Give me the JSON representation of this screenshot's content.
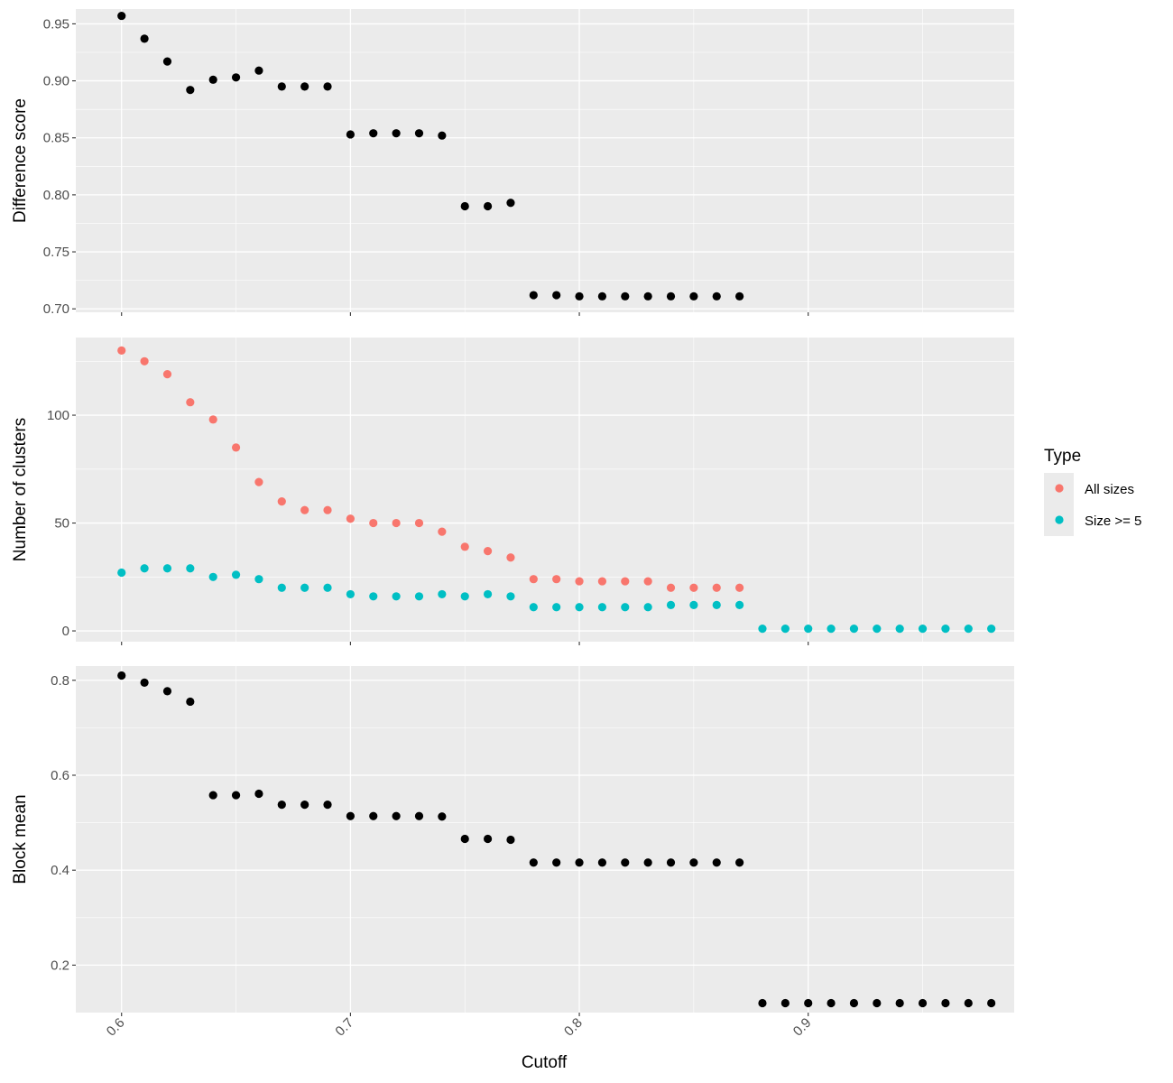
{
  "chart_data": {
    "type": "scatter",
    "xlabel": "Cutoff",
    "xlim": [
      0.58,
      0.99
    ],
    "xticks": [
      0.6,
      0.7,
      0.8,
      0.9
    ],
    "xtick_labels": [
      "0.6",
      "0.7",
      "0.8",
      "0.9"
    ],
    "grid": true,
    "legend": {
      "title": "Type",
      "position": "right",
      "entries": [
        {
          "label": "All sizes",
          "color": "#F8766D"
        },
        {
          "label": "Size >= 5",
          "color": "#00BFC4"
        }
      ]
    },
    "panels": [
      {
        "ylabel": "Difference score",
        "ylim": [
          0.697,
          0.963
        ],
        "yticks": [
          0.7,
          0.75,
          0.8,
          0.85,
          0.9,
          0.95
        ],
        "ytick_labels": [
          "0.70",
          "0.75",
          "0.80",
          "0.85",
          "0.90",
          "0.95"
        ],
        "series": [
          {
            "color": "#000000",
            "x": [
              0.6,
              0.61,
              0.62,
              0.63,
              0.64,
              0.65,
              0.66,
              0.67,
              0.68,
              0.69,
              0.7,
              0.71,
              0.72,
              0.73,
              0.74,
              0.75,
              0.76,
              0.77,
              0.78,
              0.79,
              0.8,
              0.81,
              0.82,
              0.83,
              0.84,
              0.85,
              0.86,
              0.87
            ],
            "y": [
              0.957,
              0.937,
              0.917,
              0.892,
              0.901,
              0.903,
              0.909,
              0.895,
              0.895,
              0.895,
              0.853,
              0.854,
              0.854,
              0.854,
              0.852,
              0.79,
              0.79,
              0.793,
              0.712,
              0.712,
              0.711,
              0.711,
              0.711,
              0.711,
              0.711,
              0.711,
              0.711,
              0.711
            ]
          }
        ]
      },
      {
        "ylabel": "Number of clusters",
        "ylim": [
          -5,
          136
        ],
        "yticks": [
          0,
          50,
          100
        ],
        "ytick_labels": [
          "0",
          "50",
          "100"
        ],
        "series": [
          {
            "name": "All sizes",
            "color": "#F8766D",
            "x": [
              0.6,
              0.61,
              0.62,
              0.63,
              0.64,
              0.65,
              0.66,
              0.67,
              0.68,
              0.69,
              0.7,
              0.71,
              0.72,
              0.73,
              0.74,
              0.75,
              0.76,
              0.77,
              0.78,
              0.79,
              0.8,
              0.81,
              0.82,
              0.83,
              0.84,
              0.85,
              0.86,
              0.87
            ],
            "y": [
              130,
              125,
              119,
              106,
              98,
              85,
              69,
              60,
              56,
              56,
              52,
              50,
              50,
              50,
              46,
              39,
              37,
              34,
              24,
              24,
              23,
              23,
              23,
              23,
              20,
              20,
              20,
              20
            ]
          },
          {
            "name": "Size >= 5",
            "color": "#00BFC4",
            "x": [
              0.6,
              0.61,
              0.62,
              0.63,
              0.64,
              0.65,
              0.66,
              0.67,
              0.68,
              0.69,
              0.7,
              0.71,
              0.72,
              0.73,
              0.74,
              0.75,
              0.76,
              0.77,
              0.78,
              0.79,
              0.8,
              0.81,
              0.82,
              0.83,
              0.84,
              0.85,
              0.86,
              0.87,
              0.88,
              0.89,
              0.9,
              0.91,
              0.92,
              0.93,
              0.94,
              0.95,
              0.96,
              0.97,
              0.98
            ],
            "y": [
              27,
              29,
              29,
              29,
              25,
              26,
              24,
              20,
              20,
              20,
              17,
              16,
              16,
              16,
              17,
              16,
              17,
              16,
              11,
              11,
              11,
              11,
              11,
              11,
              12,
              12,
              12,
              12,
              1,
              1,
              1,
              1,
              1,
              1,
              1,
              1,
              1,
              1,
              1
            ]
          }
        ]
      },
      {
        "ylabel": "Block mean",
        "ylim": [
          0.1,
          0.83
        ],
        "yticks": [
          0.2,
          0.4,
          0.6,
          0.8
        ],
        "ytick_labels": [
          "0.2",
          "0.4",
          "0.6",
          "0.8"
        ],
        "series": [
          {
            "color": "#000000",
            "x": [
              0.6,
              0.61,
              0.62,
              0.63,
              0.64,
              0.65,
              0.66,
              0.67,
              0.68,
              0.69,
              0.7,
              0.71,
              0.72,
              0.73,
              0.74,
              0.75,
              0.76,
              0.77,
              0.78,
              0.79,
              0.8,
              0.81,
              0.82,
              0.83,
              0.84,
              0.85,
              0.86,
              0.87,
              0.88,
              0.89,
              0.9,
              0.91,
              0.92,
              0.93,
              0.94,
              0.95,
              0.96,
              0.97,
              0.98
            ],
            "y": [
              0.81,
              0.795,
              0.777,
              0.755,
              0.558,
              0.558,
              0.561,
              0.538,
              0.538,
              0.538,
              0.514,
              0.514,
              0.514,
              0.514,
              0.513,
              0.466,
              0.466,
              0.464,
              0.416,
              0.416,
              0.416,
              0.416,
              0.416,
              0.416,
              0.416,
              0.416,
              0.416,
              0.416,
              0.12,
              0.12,
              0.12,
              0.12,
              0.12,
              0.12,
              0.12,
              0.12,
              0.12,
              0.12,
              0.12
            ]
          }
        ]
      }
    ]
  }
}
